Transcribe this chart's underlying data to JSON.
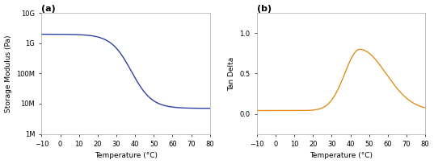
{
  "title_a": "(a)",
  "title_b": "(b)",
  "xlabel": "Temperature (°C)",
  "ylabel_a": "Storage Modulus (Pa)",
  "ylabel_b": "Tan Delta",
  "xmin": -10,
  "xmax": 80,
  "xticks": [
    -10,
    0,
    10,
    20,
    30,
    40,
    50,
    60,
    70,
    80
  ],
  "color_a": "#3040A0",
  "color_b": "#E09020",
  "ylim_a_log": [
    1000000.0,
    10000000000.0
  ],
  "yticks_a": [
    1000000.0,
    10000000.0,
    100000000.0,
    1000000000.0,
    10000000000.0
  ],
  "ytick_labels_a": [
    "1M",
    "10M",
    "100M",
    "1G",
    "10G"
  ],
  "ylim_b": [
    -0.25,
    1.25
  ],
  "yticks_b": [
    0.0,
    0.5,
    1.0
  ],
  "grid_color": "#cccccc",
  "spine_color": "#aaaaaa",
  "linewidth": 1.0
}
